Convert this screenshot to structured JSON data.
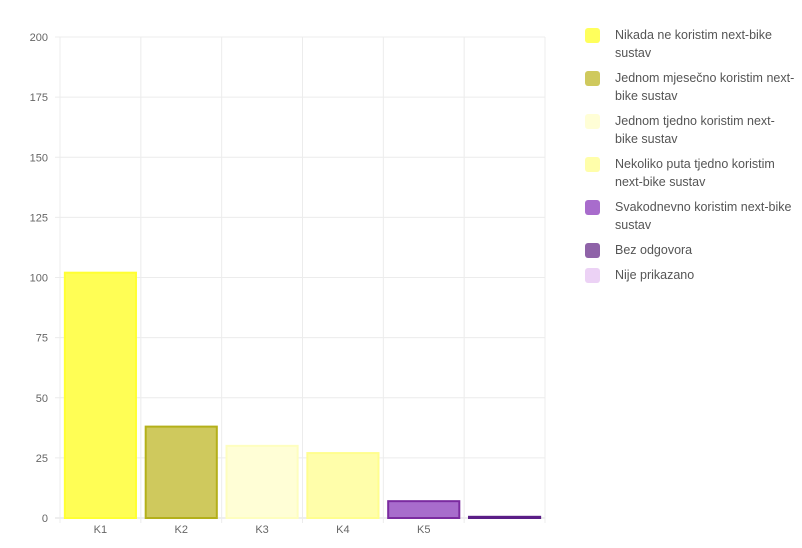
{
  "chart_data": {
    "type": "bar",
    "categories": [
      "K1",
      "K2",
      "K3",
      "K4",
      "K5",
      ""
    ],
    "values": [
      102,
      38,
      30,
      27,
      7,
      0.5
    ],
    "bar_fill_colors": [
      "#fffe55",
      "#cfc95d",
      "#fffed6",
      "#fffeaa",
      "#a86ccc",
      "#8a5ca6"
    ],
    "bar_border_colors": [
      "#ffff33",
      "#b4b01a",
      "#fefebf",
      "#fffe8f",
      "#7b2ba0",
      "#5a1e86"
    ],
    "ylim": [
      0,
      200
    ],
    "yticks": [
      0,
      25,
      50,
      75,
      100,
      125,
      150,
      175,
      200
    ],
    "grid": true,
    "legend_position": "right",
    "legend": [
      {
        "label": "Nikada ne koristim next-bike sustav",
        "color": "#ffff5c"
      },
      {
        "label": "Jednom mjesečno koristim next-bike sustav",
        "color": "#cfc95d"
      },
      {
        "label": "Jednom tjedno koristim next-bike sustav",
        "color": "#fffed6"
      },
      {
        "label": "Nekoliko puta tjedno koristim next-bike sustav",
        "color": "#fffeaa"
      },
      {
        "label": "Svakodnevno koristim next-bike sustav",
        "color": "#a86ccc"
      },
      {
        "label": "Bez odgovora",
        "color": "#8f63a8"
      },
      {
        "label": "Nije prikazano",
        "color": "#ecd2f5"
      }
    ]
  }
}
